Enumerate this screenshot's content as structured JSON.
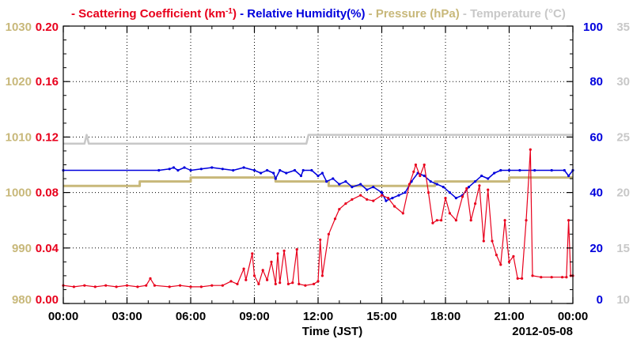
{
  "chart_data": {
    "type": "line",
    "legend": [
      {
        "text": "Scattering Coefficient (km",
        "sup": "-1",
        "tail": ")",
        "color": "#e8001c"
      },
      {
        "text": "Relative Humidity(%)",
        "color": "#0000dd"
      },
      {
        "text": "Pressure (hPa)",
        "color": "#c8b87a"
      },
      {
        "text": "Temperature (°C)",
        "color": "#c8c8c8"
      }
    ],
    "xlabel": "Time (JST)",
    "date_label": "2012-05-08",
    "x_ticks": [
      "00:00",
      "03:00",
      "06:00",
      "09:00",
      "12:00",
      "15:00",
      "18:00",
      "21:00",
      "00:00"
    ],
    "xlim_hours": [
      0,
      24
    ],
    "grid": true,
    "axes": {
      "scattering": {
        "ticks": [
          "0.00",
          "0.04",
          "0.08",
          "0.12",
          "0.16",
          "0.20"
        ],
        "ylim": [
          0,
          0.2
        ],
        "color": "#e8001c"
      },
      "pressure": {
        "ticks": [
          "980",
          "990",
          "1000",
          "1010",
          "1020",
          "1030"
        ],
        "ylim": [
          980,
          1030
        ],
        "color": "#c8b87a"
      },
      "humidity": {
        "ticks": [
          "0",
          "20",
          "40",
          "60",
          "80",
          "100"
        ],
        "ylim": [
          0,
          100
        ],
        "color": "#0000dd"
      },
      "temperature": {
        "ticks": [
          "10",
          "15",
          "20",
          "25",
          "30",
          "35"
        ],
        "ylim": [
          10,
          35
        ],
        "color": "#c8c8c8"
      }
    },
    "series": {
      "temperature": [
        [
          0,
          24.4
        ],
        [
          1.0,
          24.4
        ],
        [
          1.1,
          25.2
        ],
        [
          1.2,
          24.4
        ],
        [
          11.45,
          24.4
        ],
        [
          11.55,
          25.2
        ],
        [
          24,
          25.2
        ]
      ],
      "pressure": [
        [
          0,
          1001.2
        ],
        [
          3.6,
          1001.2
        ],
        [
          3.6,
          1002.0
        ],
        [
          6.0,
          1002.0
        ],
        [
          6.0,
          1002.7
        ],
        [
          10.0,
          1002.7
        ],
        [
          10.0,
          1002.0
        ],
        [
          12.5,
          1002.0
        ],
        [
          12.5,
          1001.2
        ],
        [
          17.5,
          1001.2
        ],
        [
          17.5,
          1002.0
        ],
        [
          21.0,
          1002.0
        ],
        [
          21.0,
          1002.7
        ],
        [
          24,
          1002.7
        ]
      ],
      "humidity": [
        [
          0,
          48
        ],
        [
          4.5,
          48
        ],
        [
          5.0,
          48.5
        ],
        [
          5.2,
          49
        ],
        [
          5.4,
          48
        ],
        [
          5.7,
          49
        ],
        [
          6.0,
          48
        ],
        [
          6.5,
          48.5
        ],
        [
          7.0,
          49
        ],
        [
          7.5,
          48.5
        ],
        [
          8.0,
          48
        ],
        [
          8.5,
          49
        ],
        [
          9.0,
          48
        ],
        [
          9.3,
          47
        ],
        [
          9.6,
          48
        ],
        [
          9.9,
          47
        ],
        [
          10.0,
          45
        ],
        [
          10.2,
          48
        ],
        [
          10.5,
          47
        ],
        [
          10.9,
          48
        ],
        [
          11.2,
          46
        ],
        [
          11.3,
          48
        ],
        [
          11.7,
          48
        ],
        [
          12.0,
          46
        ],
        [
          12.2,
          47
        ],
        [
          12.4,
          44
        ],
        [
          12.7,
          45
        ],
        [
          13.0,
          43
        ],
        [
          13.3,
          44
        ],
        [
          13.6,
          42
        ],
        [
          14.0,
          43
        ],
        [
          14.3,
          41
        ],
        [
          14.6,
          42
        ],
        [
          15.0,
          40
        ],
        [
          15.2,
          37
        ],
        [
          15.5,
          38
        ],
        [
          15.8,
          39
        ],
        [
          16.1,
          40
        ],
        [
          16.4,
          44
        ],
        [
          16.7,
          47
        ],
        [
          17.0,
          46
        ],
        [
          17.3,
          44
        ],
        [
          17.6,
          43
        ],
        [
          17.9,
          42
        ],
        [
          18.2,
          40
        ],
        [
          18.5,
          38
        ],
        [
          18.8,
          39
        ],
        [
          19.1,
          42
        ],
        [
          19.4,
          44
        ],
        [
          19.7,
          46
        ],
        [
          20.0,
          45
        ],
        [
          20.3,
          47
        ],
        [
          20.6,
          48
        ],
        [
          21.0,
          48
        ],
        [
          21.5,
          48
        ],
        [
          22.2,
          48
        ],
        [
          23.0,
          48
        ],
        [
          23.6,
          48
        ],
        [
          23.8,
          46
        ],
        [
          24,
          48
        ]
      ],
      "scattering": [
        [
          0,
          0.013
        ],
        [
          0.5,
          0.012
        ],
        [
          1.0,
          0.013
        ],
        [
          1.5,
          0.012
        ],
        [
          2.0,
          0.013
        ],
        [
          2.5,
          0.012
        ],
        [
          3.0,
          0.013
        ],
        [
          3.5,
          0.012
        ],
        [
          3.9,
          0.013
        ],
        [
          4.1,
          0.018
        ],
        [
          4.3,
          0.013
        ],
        [
          5.0,
          0.012
        ],
        [
          5.5,
          0.013
        ],
        [
          6.0,
          0.012
        ],
        [
          6.5,
          0.012
        ],
        [
          7.0,
          0.013
        ],
        [
          7.5,
          0.013
        ],
        [
          7.9,
          0.016
        ],
        [
          8.2,
          0.014
        ],
        [
          8.5,
          0.025
        ],
        [
          8.6,
          0.017
        ],
        [
          8.9,
          0.036
        ],
        [
          9.0,
          0.02
        ],
        [
          9.2,
          0.014
        ],
        [
          9.4,
          0.024
        ],
        [
          9.6,
          0.017
        ],
        [
          9.8,
          0.03
        ],
        [
          10.0,
          0.014
        ],
        [
          10.1,
          0.036
        ],
        [
          10.2,
          0.015
        ],
        [
          10.4,
          0.038
        ],
        [
          10.6,
          0.014
        ],
        [
          10.8,
          0.015
        ],
        [
          11.0,
          0.039
        ],
        [
          11.1,
          0.014
        ],
        [
          11.4,
          0.013
        ],
        [
          11.8,
          0.014
        ],
        [
          12.0,
          0.016
        ],
        [
          12.1,
          0.046
        ],
        [
          12.2,
          0.02
        ],
        [
          12.5,
          0.05
        ],
        [
          12.8,
          0.061
        ],
        [
          13.0,
          0.068
        ],
        [
          13.3,
          0.072
        ],
        [
          13.6,
          0.075
        ],
        [
          14.0,
          0.078
        ],
        [
          14.3,
          0.075
        ],
        [
          14.6,
          0.074
        ],
        [
          15.0,
          0.078
        ],
        [
          15.3,
          0.076
        ],
        [
          15.6,
          0.07
        ],
        [
          16.0,
          0.065
        ],
        [
          16.3,
          0.086
        ],
        [
          16.5,
          0.095
        ],
        [
          16.6,
          0.1
        ],
        [
          16.8,
          0.092
        ],
        [
          17.0,
          0.1
        ],
        [
          17.2,
          0.08
        ],
        [
          17.4,
          0.058
        ],
        [
          17.6,
          0.06
        ],
        [
          17.8,
          0.06
        ],
        [
          18.0,
          0.076
        ],
        [
          18.2,
          0.065
        ],
        [
          18.5,
          0.06
        ],
        [
          18.8,
          0.077
        ],
        [
          19.0,
          0.083
        ],
        [
          19.2,
          0.06
        ],
        [
          19.4,
          0.072
        ],
        [
          19.6,
          0.085
        ],
        [
          19.8,
          0.045
        ],
        [
          20.0,
          0.082
        ],
        [
          20.2,
          0.045
        ],
        [
          20.4,
          0.035
        ],
        [
          20.6,
          0.028
        ],
        [
          20.8,
          0.06
        ],
        [
          21.0,
          0.03
        ],
        [
          21.2,
          0.034
        ],
        [
          21.4,
          0.018
        ],
        [
          21.6,
          0.018
        ],
        [
          21.8,
          0.06
        ],
        [
          22.0,
          0.111
        ],
        [
          22.1,
          0.02
        ],
        [
          22.5,
          0.019
        ],
        [
          23.0,
          0.019
        ],
        [
          23.5,
          0.019
        ],
        [
          23.7,
          0.019
        ],
        [
          23.8,
          0.06
        ],
        [
          23.9,
          0.02
        ],
        [
          24,
          0.02
        ]
      ]
    }
  }
}
